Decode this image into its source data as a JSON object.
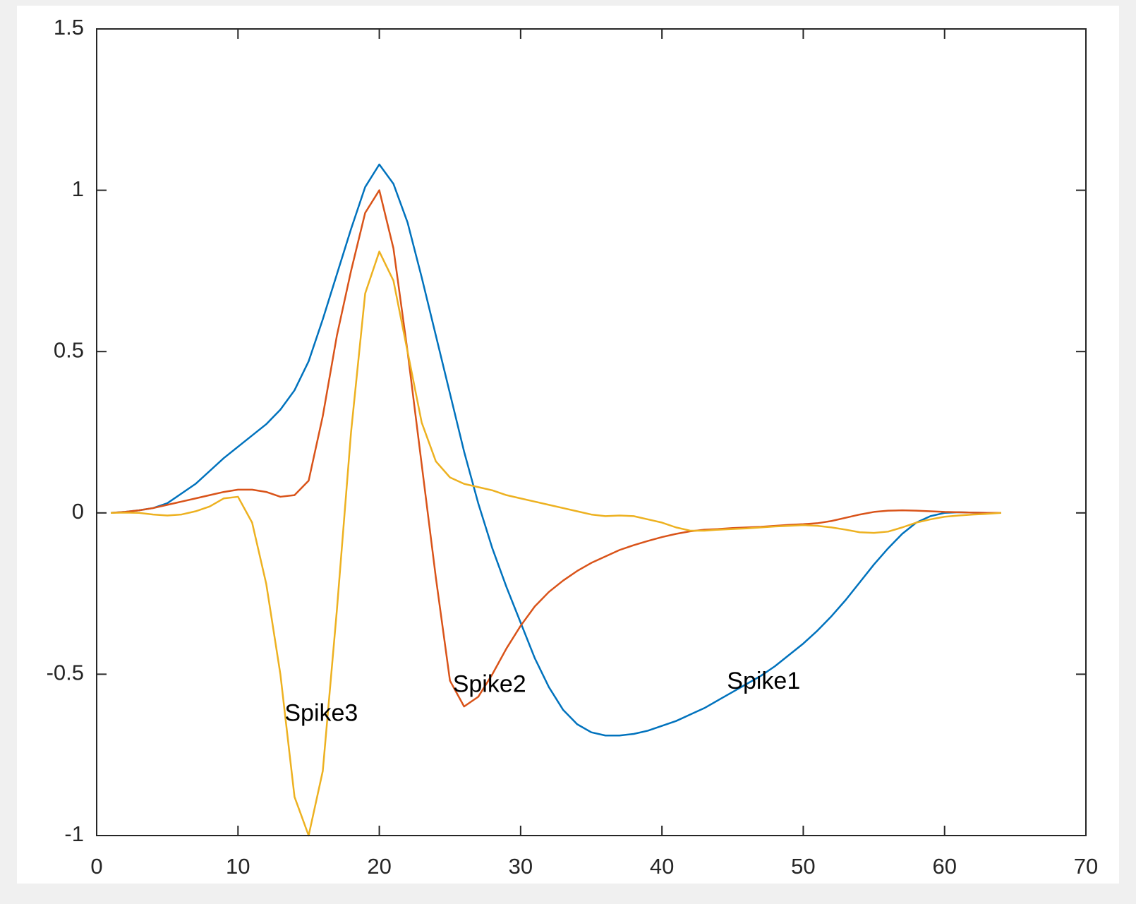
{
  "chart_data": {
    "type": "line",
    "x": [
      1,
      2,
      3,
      4,
      5,
      6,
      7,
      8,
      9,
      10,
      11,
      12,
      13,
      14,
      15,
      16,
      17,
      18,
      19,
      20,
      21,
      22,
      23,
      24,
      25,
      26,
      27,
      28,
      29,
      30,
      31,
      32,
      33,
      34,
      35,
      36,
      37,
      38,
      39,
      40,
      41,
      42,
      43,
      44,
      45,
      46,
      47,
      48,
      49,
      50,
      51,
      52,
      53,
      54,
      55,
      56,
      57,
      58,
      59,
      60,
      61,
      62,
      63,
      64
    ],
    "series": [
      {
        "name": "Spike1",
        "color": "#0072bd",
        "values": [
          0,
          0.003,
          0.008,
          0.015,
          0.03,
          0.06,
          0.09,
          0.13,
          0.17,
          0.205,
          0.24,
          0.275,
          0.32,
          0.38,
          0.47,
          0.6,
          0.74,
          0.88,
          1.01,
          1.08,
          1.02,
          0.9,
          0.73,
          0.55,
          0.37,
          0.19,
          0.03,
          -0.11,
          -0.23,
          -0.34,
          -0.45,
          -0.54,
          -0.61,
          -0.655,
          -0.68,
          -0.69,
          -0.69,
          -0.685,
          -0.675,
          -0.66,
          -0.645,
          -0.625,
          -0.605,
          -0.58,
          -0.555,
          -0.53,
          -0.505,
          -0.475,
          -0.44,
          -0.405,
          -0.365,
          -0.32,
          -0.27,
          -0.215,
          -0.16,
          -0.11,
          -0.065,
          -0.03,
          -0.01,
          0,
          0.002,
          0.001,
          0,
          0
        ]
      },
      {
        "name": "Spike2",
        "color": "#d95319",
        "values": [
          0,
          0.003,
          0.008,
          0.015,
          0.025,
          0.035,
          0.045,
          0.055,
          0.065,
          0.072,
          0.072,
          0.065,
          0.05,
          0.055,
          0.1,
          0.3,
          0.55,
          0.75,
          0.93,
          1.0,
          0.82,
          0.5,
          0.15,
          -0.2,
          -0.52,
          -0.6,
          -0.57,
          -0.5,
          -0.42,
          -0.35,
          -0.29,
          -0.245,
          -0.21,
          -0.18,
          -0.155,
          -0.135,
          -0.115,
          -0.1,
          -0.087,
          -0.075,
          -0.065,
          -0.057,
          -0.052,
          -0.05,
          -0.047,
          -0.045,
          -0.043,
          -0.04,
          -0.037,
          -0.035,
          -0.032,
          -0.025,
          -0.015,
          -0.005,
          0.003,
          0.007,
          0.008,
          0.007,
          0.005,
          0.003,
          0.002,
          0.001,
          0,
          0
        ]
      },
      {
        "name": "Spike3",
        "color": "#edb120",
        "values": [
          0,
          0.001,
          0,
          -0.005,
          -0.008,
          -0.005,
          0.005,
          0.02,
          0.045,
          0.05,
          -0.03,
          -0.22,
          -0.5,
          -0.88,
          -1.0,
          -0.8,
          -0.3,
          0.25,
          0.68,
          0.81,
          0.72,
          0.5,
          0.28,
          0.16,
          0.11,
          0.09,
          0.08,
          0.07,
          0.055,
          0.045,
          0.035,
          0.025,
          0.015,
          0.005,
          -0.005,
          -0.01,
          -0.008,
          -0.01,
          -0.02,
          -0.03,
          -0.045,
          -0.055,
          -0.055,
          -0.052,
          -0.05,
          -0.048,
          -0.045,
          -0.042,
          -0.04,
          -0.038,
          -0.04,
          -0.045,
          -0.052,
          -0.06,
          -0.062,
          -0.058,
          -0.045,
          -0.03,
          -0.02,
          -0.012,
          -0.008,
          -0.005,
          -0.003,
          0
        ]
      }
    ],
    "xlim": [
      0,
      70
    ],
    "xticks": [
      0,
      10,
      20,
      30,
      40,
      50,
      60,
      70
    ],
    "ylim": [
      -1,
      1.5
    ],
    "yticks": [
      -1,
      -0.5,
      0,
      0.5,
      1,
      1.5
    ],
    "grid": false
  }
}
